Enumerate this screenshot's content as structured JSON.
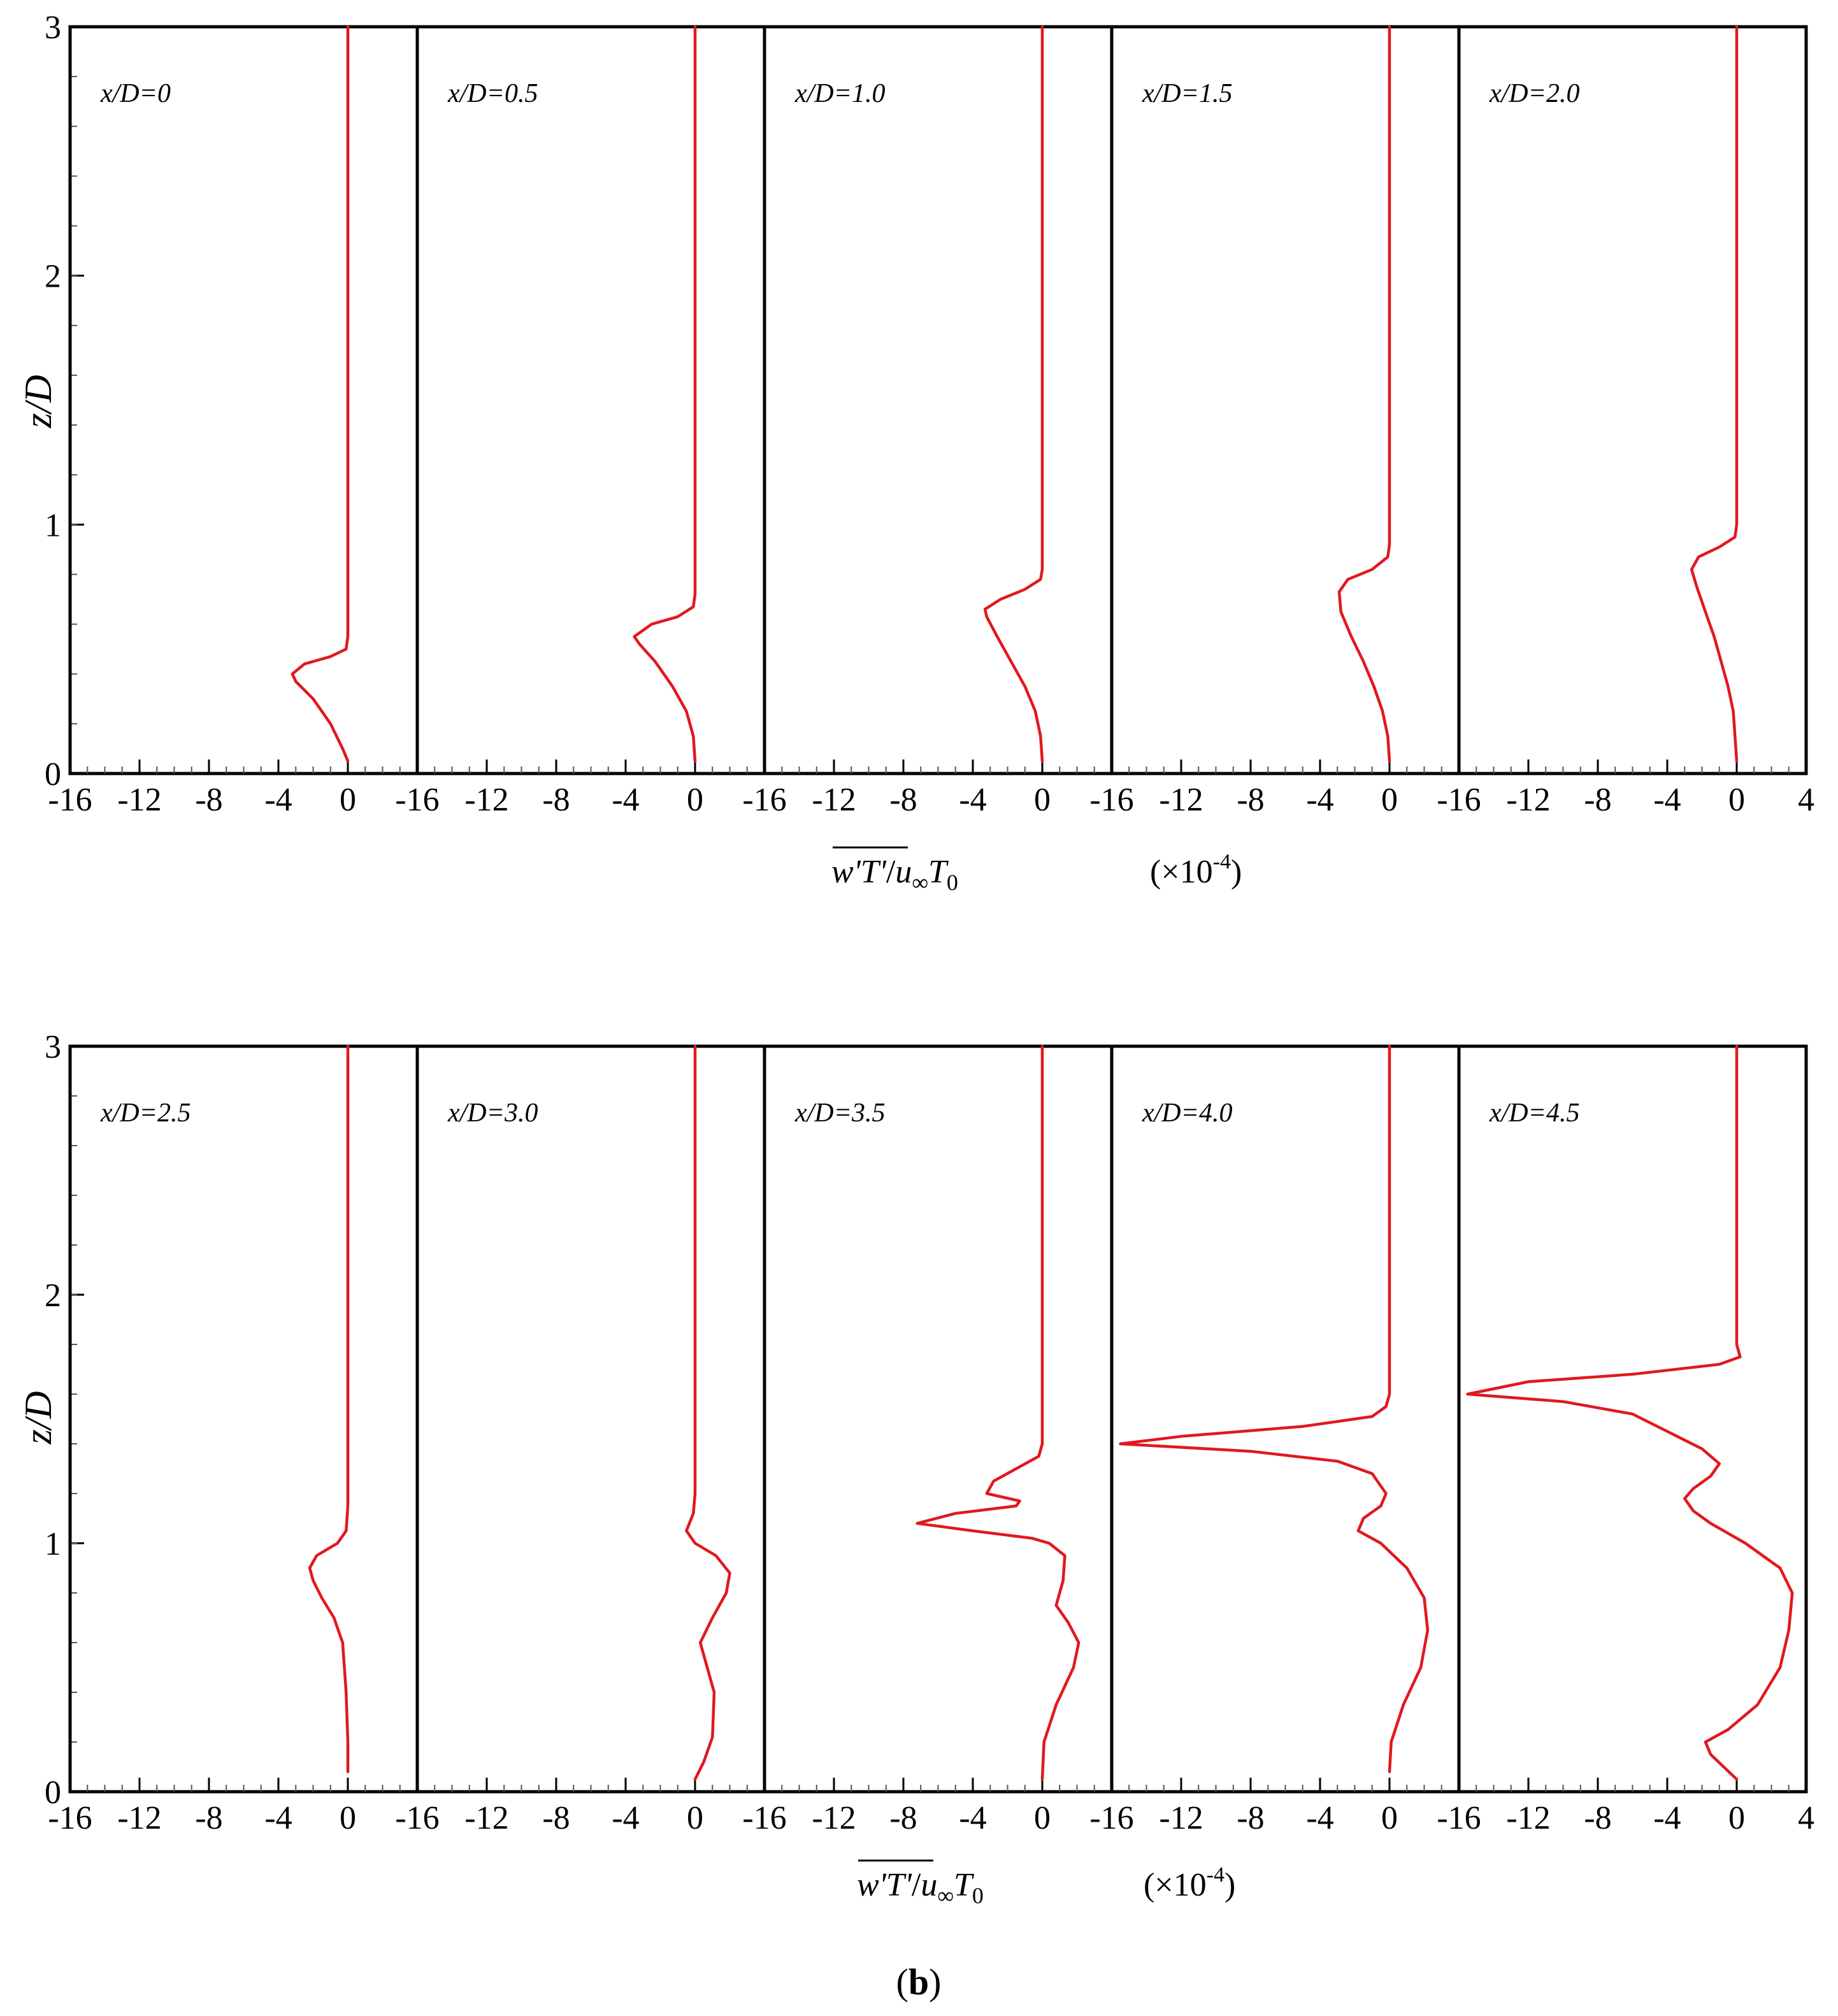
{
  "figure_label": {
    "open": "(",
    "letter": "b",
    "close": ")"
  },
  "x_axis_label": {
    "over": "w'T'",
    "slash": "/",
    "base": "u",
    "sub_inf": "∞",
    "t": "T",
    "sub0": "0"
  },
  "x_scale_label": "(×10",
  "x_scale_exp": "-4",
  "x_scale_close": ")",
  "colors": {
    "curve": "#e0191e",
    "axis": "#000000"
  },
  "chart_data": [
    {
      "type": "line",
      "ylabel": "z/D",
      "ylim": [
        0,
        3
      ],
      "yticks": [
        0,
        1,
        2,
        3
      ],
      "xlim_per_panel": [
        -16,
        4
      ],
      "xticks": [
        -16,
        -12,
        -8,
        -4,
        0
      ],
      "xticks_last_panel": [
        -16,
        -12,
        -8,
        -4,
        0,
        4
      ],
      "panels": [
        {
          "label": "x/D=0",
          "points": [
            [
              0,
              0.05
            ],
            [
              -0.3,
              0.1
            ],
            [
              -1,
              0.2
            ],
            [
              -2,
              0.3
            ],
            [
              -3,
              0.37
            ],
            [
              -3.2,
              0.4
            ],
            [
              -2.5,
              0.44
            ],
            [
              -1,
              0.47
            ],
            [
              -0.1,
              0.5
            ],
            [
              0,
              0.55
            ],
            [
              0,
              3
            ]
          ]
        },
        {
          "label": "x/D=0.5",
          "points": [
            [
              0,
              0.05
            ],
            [
              -0.1,
              0.15
            ],
            [
              -0.5,
              0.25
            ],
            [
              -1.3,
              0.35
            ],
            [
              -2.3,
              0.45
            ],
            [
              -3.2,
              0.52
            ],
            [
              -3.5,
              0.55
            ],
            [
              -2.5,
              0.6
            ],
            [
              -1,
              0.63
            ],
            [
              -0.1,
              0.67
            ],
            [
              0,
              0.72
            ],
            [
              0,
              3
            ]
          ]
        },
        {
          "label": "x/D=1.0",
          "points": [
            [
              0,
              0.05
            ],
            [
              -0.1,
              0.15
            ],
            [
              -0.4,
              0.25
            ],
            [
              -1,
              0.35
            ],
            [
              -1.8,
              0.45
            ],
            [
              -2.6,
              0.55
            ],
            [
              -3.2,
              0.63
            ],
            [
              -3.3,
              0.66
            ],
            [
              -2.4,
              0.7
            ],
            [
              -1,
              0.74
            ],
            [
              -0.1,
              0.78
            ],
            [
              0,
              0.82
            ],
            [
              0,
              3
            ]
          ]
        },
        {
          "label": "x/D=1.5",
          "points": [
            [
              0,
              0.05
            ],
            [
              -0.1,
              0.15
            ],
            [
              -0.4,
              0.25
            ],
            [
              -0.9,
              0.35
            ],
            [
              -1.5,
              0.45
            ],
            [
              -2.2,
              0.55
            ],
            [
              -2.8,
              0.65
            ],
            [
              -2.9,
              0.73
            ],
            [
              -2.4,
              0.78
            ],
            [
              -1,
              0.82
            ],
            [
              -0.1,
              0.87
            ],
            [
              0,
              0.92
            ],
            [
              0,
              3
            ]
          ]
        },
        {
          "label": "x/D=2.0",
          "points": [
            [
              0,
              0.05
            ],
            [
              -0.1,
              0.15
            ],
            [
              -0.2,
              0.25
            ],
            [
              -0.5,
              0.35
            ],
            [
              -0.9,
              0.45
            ],
            [
              -1.3,
              0.55
            ],
            [
              -1.8,
              0.65
            ],
            [
              -2.3,
              0.75
            ],
            [
              -2.6,
              0.82
            ],
            [
              -2.2,
              0.87
            ],
            [
              -1,
              0.91
            ],
            [
              -0.1,
              0.95
            ],
            [
              0,
              1.0
            ],
            [
              0,
              3
            ]
          ]
        }
      ]
    },
    {
      "type": "line",
      "ylabel": "z/D",
      "ylim": [
        0,
        3
      ],
      "yticks": [
        0,
        1,
        2,
        3
      ],
      "xlim_per_panel": [
        -16,
        4
      ],
      "xticks": [
        -16,
        -12,
        -8,
        -4,
        0
      ],
      "xticks_last_panel": [
        -16,
        -12,
        -8,
        -4,
        0,
        4
      ],
      "panels": [
        {
          "label": "x/D=2.5",
          "points": [
            [
              0,
              0.08
            ],
            [
              0,
              0.2
            ],
            [
              -0.1,
              0.4
            ],
            [
              -0.3,
              0.6
            ],
            [
              -0.8,
              0.7
            ],
            [
              -1.5,
              0.78
            ],
            [
              -2,
              0.85
            ],
            [
              -2.2,
              0.9
            ],
            [
              -1.8,
              0.95
            ],
            [
              -0.6,
              1.0
            ],
            [
              -0.1,
              1.05
            ],
            [
              0,
              1.15
            ],
            [
              0,
              3
            ]
          ]
        },
        {
          "label": "x/D=3.0",
          "points": [
            [
              0,
              0.05
            ],
            [
              0.5,
              0.12
            ],
            [
              1,
              0.22
            ],
            [
              1.1,
              0.4
            ],
            [
              0.5,
              0.55
            ],
            [
              0.3,
              0.6
            ],
            [
              1,
              0.7
            ],
            [
              1.8,
              0.8
            ],
            [
              2,
              0.88
            ],
            [
              1.2,
              0.95
            ],
            [
              0,
              1.0
            ],
            [
              -0.5,
              1.05
            ],
            [
              -0.1,
              1.12
            ],
            [
              0,
              1.2
            ],
            [
              0,
              3
            ]
          ]
        },
        {
          "label": "x/D=3.5",
          "points": [
            [
              0,
              0.05
            ],
            [
              0.1,
              0.2
            ],
            [
              0.8,
              0.35
            ],
            [
              1.8,
              0.5
            ],
            [
              2.1,
              0.6
            ],
            [
              1.5,
              0.68
            ],
            [
              0.8,
              0.75
            ],
            [
              1.2,
              0.85
            ],
            [
              1.3,
              0.95
            ],
            [
              0.4,
              1.0
            ],
            [
              -0.6,
              1.02
            ],
            [
              -4,
              1.05
            ],
            [
              -7.2,
              1.08
            ],
            [
              -5,
              1.12
            ],
            [
              -1.5,
              1.15
            ],
            [
              -1.3,
              1.17
            ],
            [
              -3.2,
              1.2
            ],
            [
              -2.8,
              1.25
            ],
            [
              -1.5,
              1.3
            ],
            [
              -0.2,
              1.35
            ],
            [
              0,
              1.4
            ],
            [
              0,
              3
            ]
          ]
        },
        {
          "label": "x/D=4.0",
          "points": [
            [
              0,
              0.08
            ],
            [
              0.1,
              0.2
            ],
            [
              0.8,
              0.35
            ],
            [
              1.8,
              0.5
            ],
            [
              2.2,
              0.65
            ],
            [
              2,
              0.78
            ],
            [
              1,
              0.9
            ],
            [
              -0.5,
              1.0
            ],
            [
              -1.8,
              1.05
            ],
            [
              -1.5,
              1.1
            ],
            [
              -0.5,
              1.15
            ],
            [
              -0.2,
              1.2
            ],
            [
              -1,
              1.28
            ],
            [
              -3,
              1.33
            ],
            [
              -8,
              1.37
            ],
            [
              -15.5,
              1.4
            ],
            [
              -12,
              1.43
            ],
            [
              -5,
              1.47
            ],
            [
              -1,
              1.51
            ],
            [
              -0.2,
              1.55
            ],
            [
              0,
              1.6
            ],
            [
              0,
              3
            ]
          ]
        },
        {
          "label": "x/D=4.5",
          "points": [
            [
              0,
              0.05
            ],
            [
              -1.5,
              0.15
            ],
            [
              -1.8,
              0.2
            ],
            [
              -0.5,
              0.25
            ],
            [
              1.2,
              0.35
            ],
            [
              2.5,
              0.5
            ],
            [
              3,
              0.65
            ],
            [
              3.2,
              0.8
            ],
            [
              2.5,
              0.9
            ],
            [
              0.5,
              1.0
            ],
            [
              -1.5,
              1.08
            ],
            [
              -2.5,
              1.13
            ],
            [
              -3,
              1.18
            ],
            [
              -2.5,
              1.22
            ],
            [
              -1.5,
              1.27
            ],
            [
              -1,
              1.32
            ],
            [
              -2,
              1.38
            ],
            [
              -4,
              1.45
            ],
            [
              -6,
              1.52
            ],
            [
              -10,
              1.57
            ],
            [
              -15.5,
              1.6
            ],
            [
              -12,
              1.65
            ],
            [
              -6,
              1.68
            ],
            [
              -1,
              1.72
            ],
            [
              0.2,
              1.75
            ],
            [
              0,
              1.8
            ],
            [
              0,
              3
            ]
          ]
        }
      ]
    }
  ]
}
